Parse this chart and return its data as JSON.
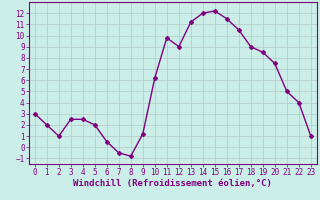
{
  "x": [
    0,
    1,
    2,
    3,
    4,
    5,
    6,
    7,
    8,
    9,
    10,
    11,
    12,
    13,
    14,
    15,
    16,
    17,
    18,
    19,
    20,
    21,
    22,
    23
  ],
  "y": [
    3.0,
    2.0,
    1.0,
    2.5,
    2.5,
    2.0,
    0.5,
    -0.5,
    -0.8,
    1.2,
    6.2,
    9.8,
    9.0,
    11.2,
    12.0,
    12.2,
    11.5,
    10.5,
    9.0,
    8.5,
    7.5,
    5.0,
    4.0,
    1.0
  ],
  "line_color": "#800080",
  "marker": "D",
  "markersize": 2,
  "linewidth": 1.0,
  "background_color": "#cceee8",
  "grid_color": "#b0c8c8",
  "xlabel": "Windchill (Refroidissement éolien,°C)",
  "xlim": [
    -0.5,
    23.5
  ],
  "ylim": [
    -1.5,
    13.0
  ],
  "yticks": [
    -1,
    0,
    1,
    2,
    3,
    4,
    5,
    6,
    7,
    8,
    9,
    10,
    11,
    12
  ],
  "xticks": [
    0,
    1,
    2,
    3,
    4,
    5,
    6,
    7,
    8,
    9,
    10,
    11,
    12,
    13,
    14,
    15,
    16,
    17,
    18,
    19,
    20,
    21,
    22,
    23
  ],
  "tick_color": "#800080",
  "tick_fontsize": 5.5,
  "xlabel_fontsize": 6.5,
  "spine_color": "#800080"
}
